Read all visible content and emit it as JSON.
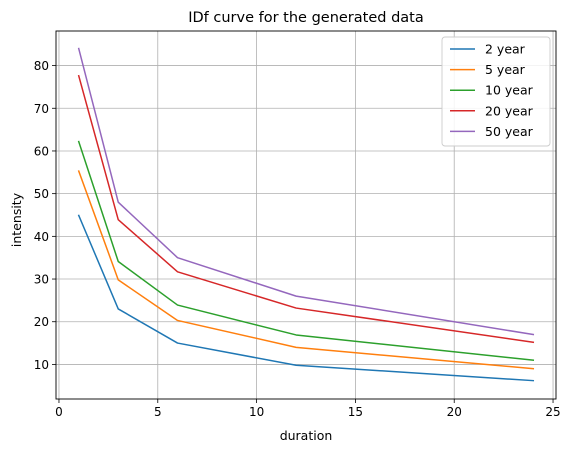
{
  "chart_data": {
    "type": "line",
    "title": "IDf curve for the generated data",
    "xlabel": "duration",
    "ylabel": "intensity",
    "x": [
      1,
      3,
      6,
      12,
      24
    ],
    "xlim": [
      -0.15,
      25.15
    ],
    "ylim": [
      1.9,
      88.1
    ],
    "xticks": [
      0,
      5,
      10,
      15,
      20,
      25
    ],
    "yticks": [
      10,
      20,
      30,
      40,
      50,
      60,
      70,
      80
    ],
    "grid": true,
    "legend_position": "top-right",
    "series": [
      {
        "name": "2 year",
        "color": "#1f77b4",
        "values": [
          44.9,
          23.0,
          15.0,
          9.8,
          6.2
        ]
      },
      {
        "name": "5 year",
        "color": "#ff7f0e",
        "values": [
          55.3,
          29.8,
          20.3,
          14.0,
          9.0
        ]
      },
      {
        "name": "10 year",
        "color": "#2ca02c",
        "values": [
          62.2,
          34.1,
          23.9,
          16.9,
          11.0
        ]
      },
      {
        "name": "20 year",
        "color": "#d62728",
        "values": [
          77.6,
          43.9,
          31.7,
          23.2,
          15.2
        ]
      },
      {
        "name": "50 year",
        "color": "#9467bd",
        "values": [
          84.0,
          48.0,
          35.0,
          26.0,
          17.0
        ]
      }
    ]
  }
}
